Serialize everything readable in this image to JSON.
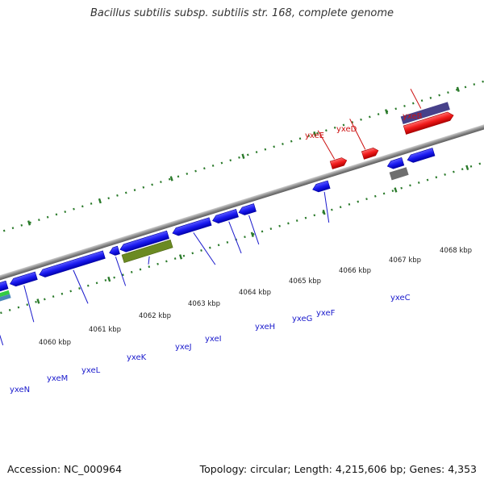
{
  "title": "Bacillus subtilis subsp. subtilis str. 168, complete genome",
  "footer": {
    "accession": "Accession: NC_000964",
    "topology": "Topology: circular; Length: 4,215,606 bp; Genes: 4,353"
  },
  "colors": {
    "forward_gene": "#ee1111",
    "reverse_gene": "#1111ee",
    "backbone": "#8c8c8c",
    "tick": "#2a7a2a",
    "forward_label": "#cc1111",
    "reverse_label": "#1a1acc",
    "feature_purple": "#47418a",
    "feature_olive": "#6b8a22",
    "feature_green": "#33cc44",
    "feature_steel": "#4a86b8",
    "feature_gray": "#6e6e6e"
  },
  "ruler": {
    "labels": [
      "4060 kbp",
      "4061 kbp",
      "4062 kbp",
      "4063 kbp",
      "4064 kbp",
      "4065 kbp",
      "4066 kbp",
      "4067 kbp",
      "4068 kbp"
    ]
  },
  "genes": {
    "forward_labels": [
      "yxeE",
      "yxeD",
      "yxeB"
    ],
    "reverse_labels": [
      "yxeN",
      "yxeM",
      "yxeL",
      "yxeK",
      "yxeJ",
      "yxeI",
      "yxeH",
      "yxeG",
      "yxeF",
      "yxeC"
    ]
  }
}
